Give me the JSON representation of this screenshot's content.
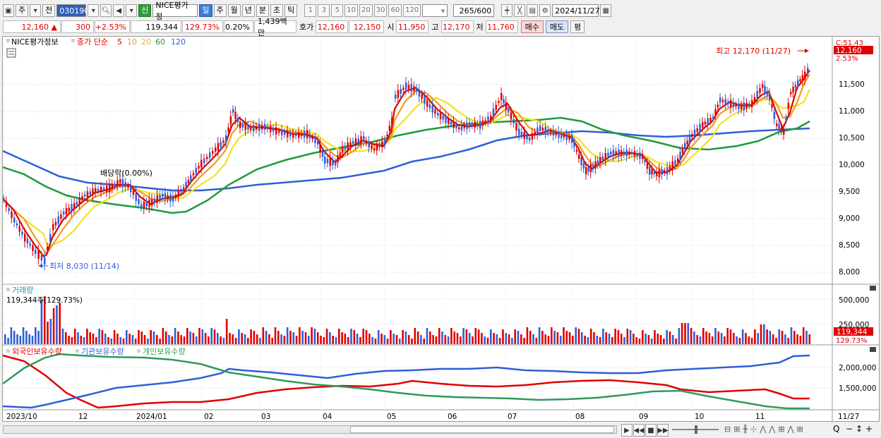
{
  "toolbar": {
    "period_type": "주",
    "prev_label": "전",
    "code": "030190",
    "badge_new": "신",
    "stock_name": "NICE평가정",
    "periods": [
      "일",
      "주",
      "월",
      "년",
      "분",
      "초",
      "틱"
    ],
    "active_period": "일",
    "intervals": [
      "1",
      "3",
      "5",
      "10",
      "20",
      "30",
      "60",
      "120"
    ],
    "count": "265",
    "max_count": "/600",
    "date": "2024/11/27"
  },
  "quote": {
    "price": "12,160",
    "change": "300",
    "change_pct": "+2.53%",
    "volume": "119,344",
    "volume_ratio": "129.73%",
    "turnover": "0.20%",
    "amount": "1,439백만",
    "ask_label": "호가",
    "ask": "12,160",
    "bid": "12,150",
    "open_label": "시",
    "open": "11,950",
    "high_label": "고",
    "high": "12,170",
    "low_label": "저",
    "low": "11,760",
    "buy_label": "매수",
    "sell_label": "매도",
    "eval_label": "평"
  },
  "price_panel": {
    "legend_name": "NICE평가정보",
    "legend_ma": "종가 단순",
    "ma_periods": [
      "5",
      "10",
      "20",
      "60",
      "120"
    ],
    "ma_colors": [
      "#e00000",
      "#f39a1e",
      "#f3e21e",
      "#1e9a3a",
      "#2f5fd8"
    ],
    "high_marker": "최고 12,170 (11/27)",
    "low_marker": "최저 8,030 (11/14)",
    "dividend_marker": "배당락(0.00%)",
    "y_ticks": [
      "11,500",
      "11,000",
      "10,500",
      "10,000",
      "9,500",
      "9,000",
      "8,500",
      "8,000"
    ],
    "y_top_label": "C:51.43",
    "current_price": "12,160",
    "current_pct": "2.53%"
  },
  "volume_panel": {
    "title": "거래량",
    "value_label": "119,344주(129.73%)",
    "y_ticks": [
      "500,000",
      "250,000"
    ],
    "current": "119,344",
    "current_pct": "129.73%"
  },
  "holdings_panel": {
    "legend": [
      "외국인보유수량",
      "기관보유수량",
      "개인보유수량"
    ],
    "colors": [
      "#e00000",
      "#2f5fd8",
      "#2e9a5a"
    ],
    "y_ticks": [
      "2,000,000",
      "1,500,000"
    ]
  },
  "x_axis": {
    "labels": [
      "2023/10",
      "12",
      "2024/01",
      "02",
      "03",
      "04",
      "05",
      "06",
      "07",
      "08",
      "09",
      "10",
      "11"
    ],
    "end_label": "11/27"
  }
}
